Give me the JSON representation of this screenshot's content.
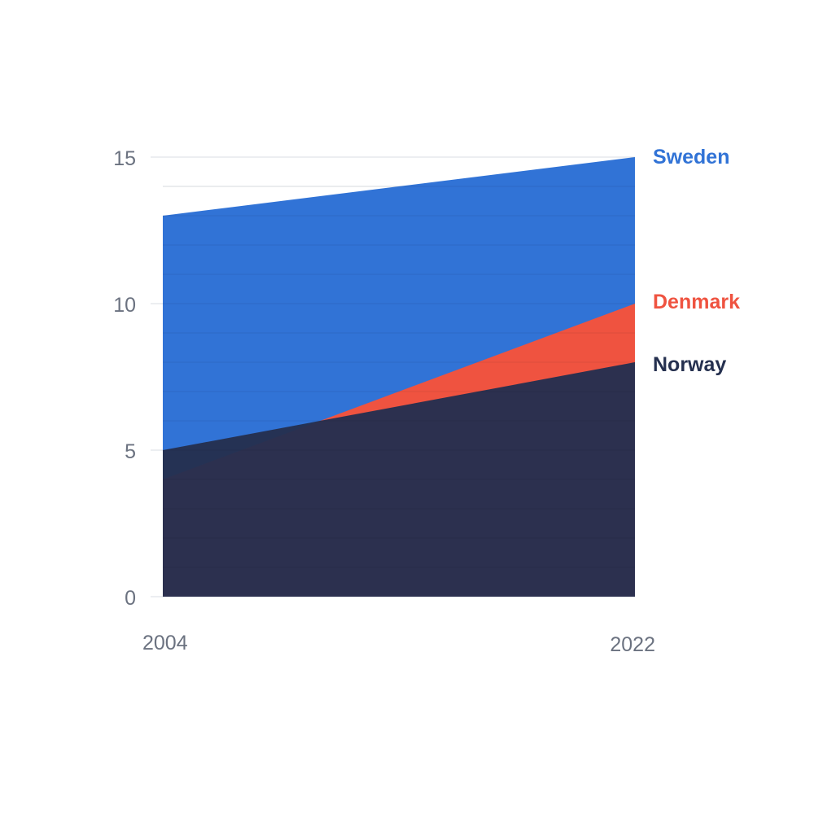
{
  "chart_data": {
    "type": "area",
    "title": "",
    "xlabel": "",
    "ylabel": "",
    "x": [
      "2004",
      "2022"
    ],
    "ylim": [
      0,
      15
    ],
    "yticks": [
      "0",
      "5",
      "10",
      "15"
    ],
    "grid": true,
    "legend": "right-end labels",
    "series": [
      {
        "name": "Sweden",
        "values": [
          13,
          15
        ],
        "color": "#3173d6"
      },
      {
        "name": "Denmark",
        "values": [
          4,
          10
        ],
        "color": "#ef5340"
      },
      {
        "name": "Norway",
        "values": [
          5,
          8
        ],
        "color": "#25304f"
      }
    ]
  }
}
